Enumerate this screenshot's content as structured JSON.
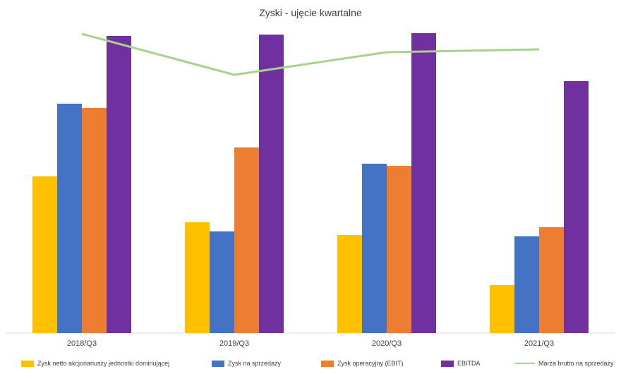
{
  "chart_data": {
    "type": "bar",
    "title": "Zyski - ujęcie kwartalne",
    "categories": [
      "2018/Q3",
      "2019/Q3",
      "2020/Q3",
      "2021/Q3"
    ],
    "series": [
      {
        "name": "Zysk netto akcjonariuszy jednostki dominującej",
        "type": "bar",
        "color": "#FFC000",
        "values": [
          222,
          157,
          139,
          68
        ]
      },
      {
        "name": "Zysk na sprzedaży",
        "type": "bar",
        "color": "#4472C4",
        "values": [
          325,
          144,
          240,
          137
        ]
      },
      {
        "name": "Zysk operacyjny (EBIT)",
        "type": "bar",
        "color": "#ED7D31",
        "values": [
          319,
          263,
          237,
          150
        ]
      },
      {
        "name": "EBITDA",
        "type": "bar",
        "color": "#7030A0",
        "values": [
          421,
          423,
          425,
          357
        ]
      },
      {
        "name": "Marża brutto na sprzedaży",
        "type": "line",
        "color": "#A9D18E",
        "values": [
          424,
          366,
          398,
          402
        ]
      }
    ],
    "ylim": [
      0,
      472
    ],
    "xlabel": "",
    "ylabel": "",
    "grid": false,
    "legend_position": "bottom"
  }
}
